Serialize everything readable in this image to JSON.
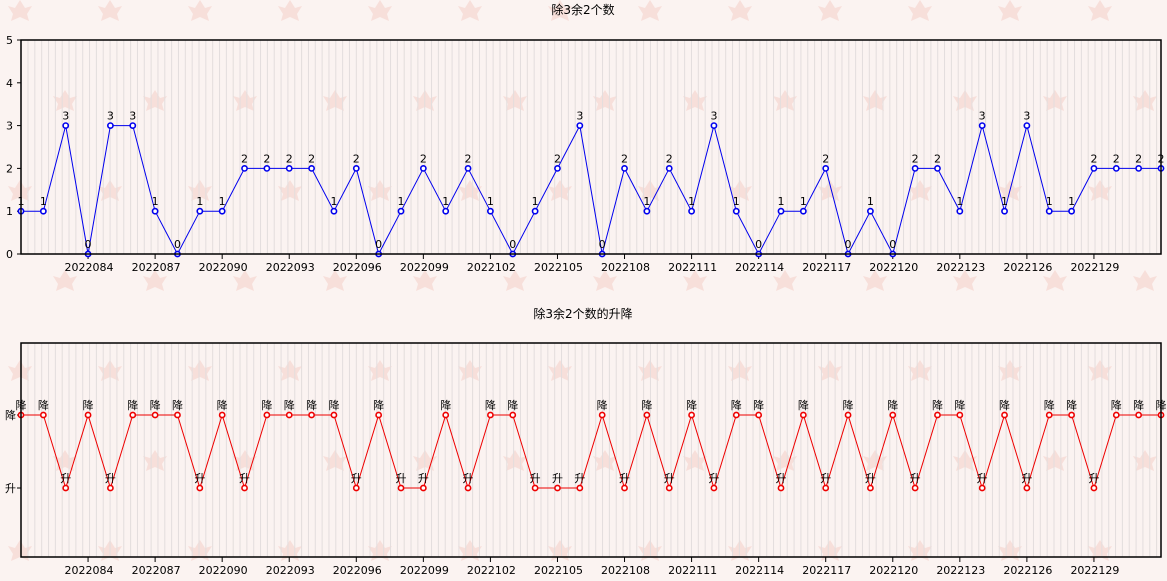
{
  "chart_data": [
    {
      "type": "line",
      "title": "除3余2个数",
      "x": [
        "2022081",
        "2022082",
        "2022083",
        "2022084",
        "2022085",
        "2022086",
        "2022087",
        "2022088",
        "2022089",
        "2022090",
        "2022091",
        "2022092",
        "2022093",
        "2022094",
        "2022095",
        "2022096",
        "2022097",
        "2022098",
        "2022099",
        "2022100",
        "2022101",
        "2022102",
        "2022103",
        "2022104",
        "2022105",
        "2022106",
        "2022107",
        "2022108",
        "2022109",
        "2022110",
        "2022111",
        "2022112",
        "2022113",
        "2022114",
        "2022115",
        "2022116",
        "2022117",
        "2022118",
        "2022119",
        "2022120",
        "2022121",
        "2022122",
        "2022123",
        "2022124",
        "2022125",
        "2022126",
        "2022127",
        "2022128",
        "2022129",
        "2022130",
        "2022131",
        "2022132"
      ],
      "values": [
        1,
        1,
        3,
        0,
        3,
        3,
        1,
        0,
        1,
        1,
        2,
        2,
        2,
        2,
        1,
        2,
        0,
        1,
        2,
        1,
        2,
        1,
        0,
        1,
        2,
        3,
        0,
        2,
        1,
        2,
        1,
        3,
        1,
        0,
        1,
        1,
        2,
        0,
        1,
        0,
        2,
        2,
        1,
        3,
        1,
        3,
        1,
        1,
        2,
        2,
        2,
        2
      ],
      "xtick_labels": [
        "2022084",
        "2022087",
        "2022090",
        "2022093",
        "2022096",
        "2022099",
        "2022102",
        "2022105",
        "2022108",
        "2022111",
        "2022114",
        "2022117",
        "2022120",
        "2022123",
        "2022126",
        "2022129"
      ],
      "yticks": [
        "0",
        "1",
        "2",
        "3",
        "4",
        "5"
      ],
      "ylim": [
        0,
        5
      ],
      "color": "#0000ee",
      "grid": true
    },
    {
      "type": "line",
      "title": "除3余2个数的升降",
      "x": [
        "2022081",
        "2022082",
        "2022083",
        "2022084",
        "2022085",
        "2022086",
        "2022087",
        "2022088",
        "2022089",
        "2022090",
        "2022091",
        "2022092",
        "2022093",
        "2022094",
        "2022095",
        "2022096",
        "2022097",
        "2022098",
        "2022099",
        "2022100",
        "2022101",
        "2022102",
        "2022103",
        "2022104",
        "2022105",
        "2022106",
        "2022107",
        "2022108",
        "2022109",
        "2022110",
        "2022111",
        "2022112",
        "2022113",
        "2022114",
        "2022115",
        "2022116",
        "2022117",
        "2022118",
        "2022119",
        "2022120",
        "2022121",
        "2022122",
        "2022123",
        "2022124",
        "2022125",
        "2022126",
        "2022127",
        "2022128",
        "2022129",
        "2022130",
        "2022131",
        "2022132"
      ],
      "values": [
        "降",
        "降",
        "升",
        "降",
        "升",
        "降",
        "降",
        "降",
        "升",
        "降",
        "升",
        "降",
        "降",
        "降",
        "降",
        "升",
        "降",
        "升",
        "升",
        "降",
        "升",
        "降",
        "降",
        "升",
        "升",
        "升",
        "降",
        "升",
        "降",
        "升",
        "降",
        "升",
        "降",
        "降",
        "升",
        "降",
        "升",
        "降",
        "升",
        "降",
        "升",
        "降",
        "降",
        "升",
        "降",
        "升",
        "降",
        "降",
        "升",
        "降",
        "降",
        "降"
      ],
      "categories": [
        "升",
        "降"
      ],
      "xtick_labels": [
        "2022084",
        "2022087",
        "2022090",
        "2022093",
        "2022096",
        "2022099",
        "2022102",
        "2022105",
        "2022108",
        "2022111",
        "2022114",
        "2022117",
        "2022120",
        "2022123",
        "2022126",
        "2022129"
      ],
      "color": "#ee0000",
      "grid": true
    }
  ]
}
